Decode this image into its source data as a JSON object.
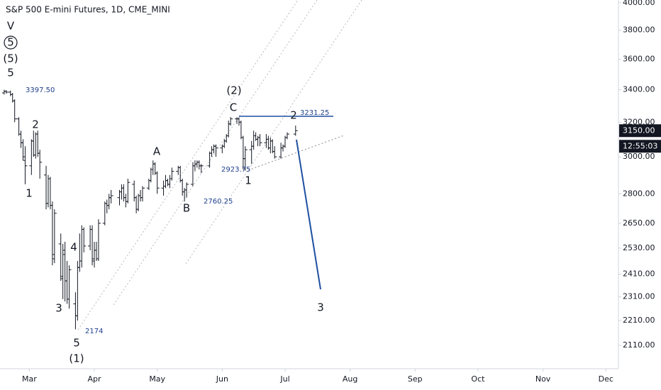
{
  "chart_data": {
    "type": "ohlc",
    "title": "S&P 500 E-mini Futures, 1D, CME_MINI",
    "color": "#131722",
    "log": true,
    "ylim": [
      2020,
      4020
    ],
    "yticks": [
      {
        "value": 4000,
        "label": "4000.00"
      },
      {
        "value": 3800,
        "label": "3800.00"
      },
      {
        "value": 3600,
        "label": "3600.00"
      },
      {
        "value": 3400,
        "label": "3400.00"
      },
      {
        "value": 3200,
        "label": "3200.00"
      },
      {
        "value": 3000,
        "label": "3000.00"
      },
      {
        "value": 2800,
        "label": "2800.00"
      },
      {
        "value": 2650,
        "label": "2650.00"
      },
      {
        "value": 2530,
        "label": "2530.00"
      },
      {
        "value": 2410,
        "label": "2410.00"
      },
      {
        "value": 2310,
        "label": "2310.00"
      },
      {
        "value": 2210,
        "label": "2210.00"
      },
      {
        "value": 2110,
        "label": "2110.00"
      }
    ],
    "xlim": [
      47,
      342
    ],
    "xticks": [
      {
        "value": 61,
        "label": "Mar"
      },
      {
        "value": 92,
        "label": "Apr"
      },
      {
        "value": 122,
        "label": "May"
      },
      {
        "value": 153,
        "label": "Jun"
      },
      {
        "value": 183,
        "label": "Jul"
      },
      {
        "value": 214,
        "label": "Aug"
      },
      {
        "value": 245,
        "label": "Sep"
      },
      {
        "value": 275,
        "label": "Oct"
      },
      {
        "value": 306,
        "label": "Nov"
      },
      {
        "value": 336,
        "label": "Dec"
      }
    ],
    "x": [
      49,
      50,
      52,
      53,
      54,
      56,
      57,
      58,
      59,
      62,
      63,
      64,
      65,
      66,
      69,
      70,
      71,
      72,
      73,
      76,
      77,
      78,
      79,
      80,
      83,
      84,
      85,
      86,
      87,
      90,
      91,
      92,
      93,
      94,
      97,
      98,
      99,
      100,
      104,
      105,
      106,
      107,
      108,
      111,
      112,
      113,
      114,
      115,
      118,
      119,
      120,
      121,
      122,
      125,
      126,
      127,
      128,
      129,
      132,
      133,
      134,
      135,
      136,
      139,
      140,
      141,
      142,
      143,
      147,
      148,
      149,
      150,
      153,
      154,
      155,
      156,
      157,
      160,
      161,
      162,
      163,
      164,
      167,
      168,
      169,
      170,
      171,
      174,
      175,
      176,
      177,
      178,
      181,
      182,
      183,
      184,
      188
    ],
    "ohlc": [
      [
        3380,
        3400,
        3370,
        3390
      ],
      [
        3390,
        3397.5,
        3375,
        3385
      ],
      [
        3385,
        3395,
        3360,
        3370
      ],
      [
        3370,
        3380,
        3320,
        3330
      ],
      [
        3330,
        3340,
        3200,
        3220
      ],
      [
        3220,
        3230,
        3120,
        3130
      ],
      [
        3130,
        3150,
        3050,
        3080
      ],
      [
        3080,
        3100,
        2980,
        3000
      ],
      [
        2980,
        3060,
        2850,
        2950
      ],
      [
        2950,
        3100,
        2900,
        3090
      ],
      [
        3090,
        3150,
        3000,
        3010
      ],
      [
        3010,
        3140,
        2990,
        3130
      ],
      [
        3130,
        3150,
        3000,
        3020
      ],
      [
        3020,
        3040,
        2880,
        2970
      ],
      [
        2900,
        2950,
        2720,
        2750
      ],
      [
        2750,
        2900,
        2730,
        2880
      ],
      [
        2880,
        2890,
        2720,
        2740
      ],
      [
        2740,
        2760,
        2450,
        2480
      ],
      [
        2500,
        2720,
        2460,
        2700
      ],
      [
        2550,
        2600,
        2380,
        2390
      ],
      [
        2400,
        2550,
        2300,
        2520
      ],
      [
        2500,
        2560,
        2290,
        2380
      ],
      [
        2380,
        2470,
        2280,
        2300
      ],
      [
        2300,
        2450,
        2260,
        2430
      ],
      [
        2280,
        2330,
        2174,
        2230
      ],
      [
        2230,
        2470,
        2210,
        2440
      ],
      [
        2440,
        2600,
        2420,
        2470
      ],
      [
        2470,
        2640,
        2440,
        2620
      ],
      [
        2620,
        2630,
        2510,
        2540
      ],
      [
        2540,
        2640,
        2520,
        2620
      ],
      [
        2620,
        2640,
        2450,
        2470
      ],
      [
        2480,
        2560,
        2440,
        2520
      ],
      [
        2520,
        2560,
        2470,
        2480
      ],
      [
        2480,
        2670,
        2470,
        2650
      ],
      [
        2650,
        2760,
        2640,
        2750
      ],
      [
        2750,
        2770,
        2700,
        2740
      ],
      [
        2740,
        2800,
        2720,
        2780
      ],
      [
        2780,
        2820,
        2750,
        2790
      ],
      [
        2780,
        2820,
        2740,
        2810
      ],
      [
        2810,
        2850,
        2770,
        2830
      ],
      [
        2830,
        2850,
        2760,
        2780
      ],
      [
        2780,
        2800,
        2730,
        2760
      ],
      [
        2760,
        2880,
        2750,
        2860
      ],
      [
        2850,
        2870,
        2760,
        2780
      ],
      [
        2780,
        2790,
        2700,
        2720
      ],
      [
        2720,
        2800,
        2710,
        2790
      ],
      [
        2790,
        2820,
        2760,
        2780
      ],
      [
        2780,
        2840,
        2760,
        2830
      ],
      [
        2830,
        2880,
        2820,
        2870
      ],
      [
        2870,
        2940,
        2860,
        2930
      ],
      [
        2930,
        2980,
        2900,
        2960
      ],
      [
        2960,
        2970,
        2900,
        2910
      ],
      [
        2910,
        2920,
        2800,
        2830
      ],
      [
        2830,
        2870,
        2790,
        2840
      ],
      [
        2840,
        2900,
        2830,
        2870
      ],
      [
        2870,
        2880,
        2840,
        2850
      ],
      [
        2850,
        2900,
        2830,
        2880
      ],
      [
        2880,
        2940,
        2870,
        2920
      ],
      [
        2920,
        2950,
        2900,
        2940
      ],
      [
        2940,
        2950,
        2860,
        2870
      ],
      [
        2870,
        2880,
        2790,
        2810
      ],
      [
        2810,
        2830,
        2760.25,
        2820
      ],
      [
        2820,
        2860,
        2780,
        2850
      ],
      [
        2850,
        2970,
        2840,
        2950
      ],
      [
        2950,
        2980,
        2920,
        2960
      ],
      [
        2960,
        2980,
        2940,
        2970
      ],
      [
        2970,
        2980,
        2930,
        2950
      ],
      [
        2950,
        2960,
        2910,
        2950
      ],
      [
        2950,
        3030,
        2940,
        3020
      ],
      [
        3020,
        3060,
        3000,
        3040
      ],
      [
        3040,
        3070,
        3020,
        3060
      ],
      [
        3060,
        3070,
        3000,
        3050
      ],
      [
        3050,
        3070,
        3020,
        3060
      ],
      [
        3060,
        3100,
        3050,
        3090
      ],
      [
        3090,
        3130,
        3080,
        3120
      ],
      [
        3120,
        3210,
        3110,
        3190
      ],
      [
        3190,
        3231.25,
        3180,
        3220
      ],
      [
        3220,
        3230,
        3190,
        3220
      ],
      [
        3220,
        3230,
        3180,
        3200
      ],
      [
        3200,
        3210,
        3100,
        3110
      ],
      [
        3110,
        3120,
        2930,
        2990
      ],
      [
        2990,
        3060,
        2923.75,
        3040
      ],
      [
        3040,
        3090,
        2960,
        3060
      ],
      [
        3060,
        3150,
        3040,
        3120
      ],
      [
        3120,
        3140,
        3090,
        3100
      ],
      [
        3100,
        3120,
        3060,
        3110
      ],
      [
        3110,
        3130,
        3060,
        3080
      ],
      [
        3080,
        3130,
        3050,
        3100
      ],
      [
        3100,
        3120,
        3040,
        3050
      ],
      [
        3050,
        3110,
        3020,
        3090
      ],
      [
        3090,
        3100,
        3020,
        3030
      ],
      [
        3030,
        3060,
        2990,
        3000
      ],
      [
        3000,
        3080,
        2990,
        3050
      ],
      [
        3050,
        3070,
        3030,
        3060
      ],
      [
        3060,
        3120,
        3050,
        3110
      ],
      [
        3110,
        3140,
        3100,
        3130
      ],
      [
        3130,
        3180,
        3120,
        3150
      ]
    ],
    "last_price": {
      "value": 3150,
      "label": "3150.00"
    },
    "countdown": "12:55:03",
    "annotations": [
      {
        "text": "V",
        "style": "wave"
      },
      {
        "text": "5",
        "style": "wave",
        "circled": true
      },
      {
        "text": "(5)",
        "style": "wave"
      },
      {
        "text": "5",
        "style": "wave"
      },
      {
        "text": "3397.50",
        "style": "blue"
      },
      {
        "text": "2",
        "style": "wave"
      },
      {
        "text": "1",
        "style": "wave"
      },
      {
        "text": "4",
        "style": "wave"
      },
      {
        "text": "3",
        "style": "wave"
      },
      {
        "text": "2174",
        "style": "blue"
      },
      {
        "text": "5",
        "style": "wave"
      },
      {
        "text": "(1)",
        "style": "wave"
      },
      {
        "text": "A",
        "style": "wave"
      },
      {
        "text": "B",
        "style": "wave"
      },
      {
        "text": "2760.25",
        "style": "blue"
      },
      {
        "text": "(2)",
        "style": "wave"
      },
      {
        "text": "C",
        "style": "wave"
      },
      {
        "text": "2",
        "style": "wave"
      },
      {
        "text": "3231.25",
        "style": "blue"
      },
      {
        "text": "2923.75",
        "style": "blue"
      },
      {
        "text": "1",
        "style": "wave"
      },
      {
        "text": "3",
        "style": "wave"
      }
    ]
  }
}
